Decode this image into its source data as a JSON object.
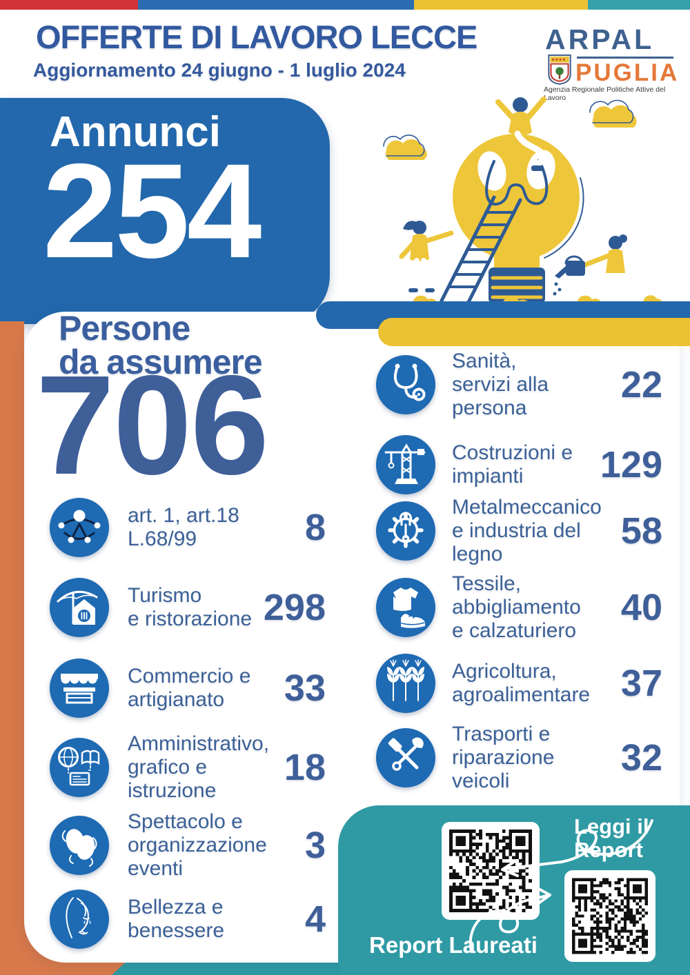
{
  "page": {
    "title": "OFFERTE DI LAVORO LECCE",
    "subtitle": "Aggiornamento 24 giugno - 1 luglio 2024"
  },
  "logo": {
    "name_top": "ARPAL",
    "name_bottom": "PUGLIA",
    "tagline": "Agenzia Regionale Politiche Attive del Lavoro",
    "crest_icon": "puglia-crest-icon"
  },
  "announcements": {
    "label": "Annunci",
    "value": "254"
  },
  "hires": {
    "label": "Persone\nda assumere",
    "value": "706"
  },
  "sectors": {
    "left": [
      {
        "icon": "accessibility-icon",
        "label": "art. 1, art.18\nL.68/99",
        "value": "8"
      },
      {
        "icon": "tourism-umbrella-icon",
        "label": "Turismo\ne ristorazione",
        "value": "298"
      },
      {
        "icon": "market-stall-icon",
        "label": "Commercio e\nartigianato",
        "value": "33"
      },
      {
        "icon": "globe-book-icon",
        "label": "Amministrativo,\ngrafico e\nistruzione",
        "value": "18"
      },
      {
        "icon": "theater-masks-icon",
        "label": "Spettacolo e\norganizzazione\neventi",
        "value": "3"
      },
      {
        "icon": "beauty-face-icon",
        "label": "Bellezza e\nbenessere",
        "value": "4"
      }
    ],
    "right": [
      {
        "icon": "stethoscope-icon",
        "label": "Sanità,\nservizi alla\npersona",
        "value": "22"
      },
      {
        "icon": "crane-icon",
        "label": "Costruzioni e\nimpianti",
        "value": "129"
      },
      {
        "icon": "gear-wrench-icon",
        "label": "Metalmeccanico\ne industria del\nlegno",
        "value": "58"
      },
      {
        "icon": "tshirt-shoe-icon",
        "label": "Tessile,\nabbigliamento\ne calzaturiero",
        "value": "40"
      },
      {
        "icon": "wheat-icon",
        "label": "Agricoltura,\nagroalimentare",
        "value": "37"
      },
      {
        "icon": "hammer-wrench-icon",
        "label": "Trasporti e\nriparazione\nveicoli",
        "value": "32"
      }
    ]
  },
  "report_panel": {
    "read_report_label": "Leggi il\nReport",
    "graduates_label": "Report Laureati",
    "qr1_icon": "qr-code-icon",
    "qr2_icon": "qr-code-icon"
  },
  "colors": {
    "brand_blue": "#2368ac",
    "icon_blue": "#1e6ab3",
    "text_navy": "#3c6197",
    "number_navy": "#3f5f99",
    "yellow": "#eac233",
    "teal": "#2f9aa4",
    "orange": "#d8794a",
    "red": "#d03238"
  }
}
